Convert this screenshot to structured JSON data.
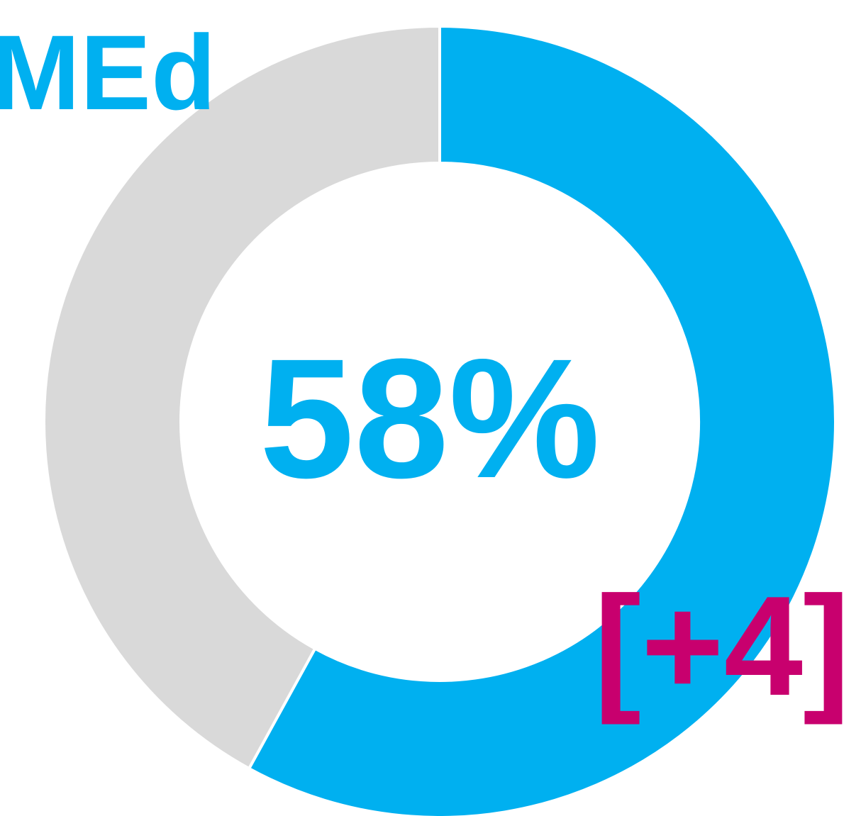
{
  "chart_data": {
    "type": "pie",
    "donut": true,
    "title": "MEd",
    "center_label": "58%",
    "annotation": "[+4]",
    "values": [
      58,
      42
    ],
    "colors": [
      "#00b0f0",
      "#d9d9d9"
    ],
    "title_color": "#00b0f0",
    "center_color": "#00b0f0",
    "annotation_color": "#c8006e"
  }
}
